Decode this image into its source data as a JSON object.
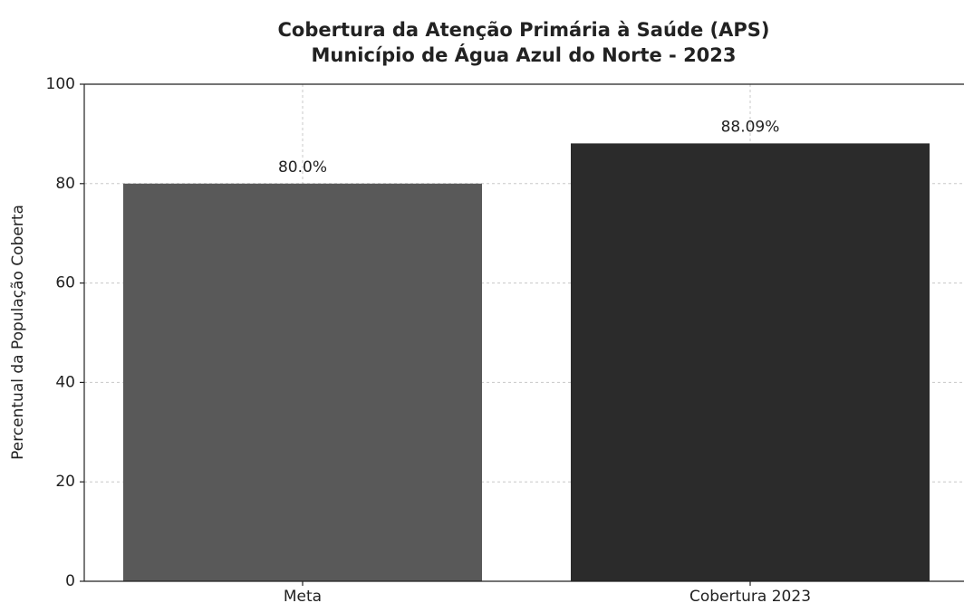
{
  "chart_data": {
    "type": "bar",
    "title": "Cobertura da Atenção Primária à Saúde (APS)",
    "subtitle": "Município de Água Azul do Norte - 2023",
    "y_label": "Percentual da População Coberta",
    "categories": [
      "Meta",
      "Cobertura 2023"
    ],
    "values": [
      80.0,
      88.09
    ],
    "value_labels": [
      "80.0%",
      "88.09%"
    ],
    "colors": [
      "#595959",
      "#2b2b2b"
    ],
    "ylim": [
      0,
      100
    ],
    "yticks": [
      0,
      20,
      40,
      60,
      80,
      100
    ],
    "grid": true
  }
}
